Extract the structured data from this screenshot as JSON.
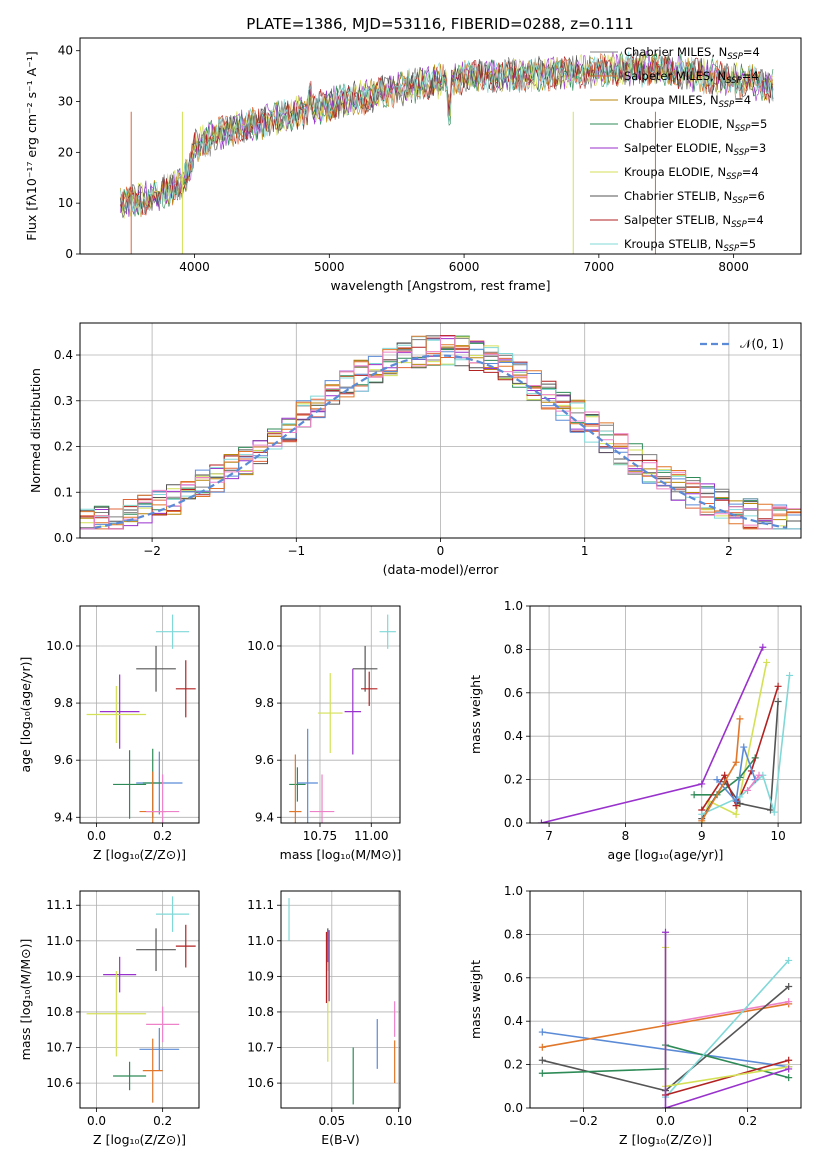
{
  "figure_title": "PLATE=1386, MJD=53116, FIBERID=0288, z=0.111",
  "colors": {
    "Chabrier MILES": "#7f7f7f",
    "Salpeter MILES": "#e0663a",
    "Kroupa MILES": "#b8860b",
    "Chabrier ELODIE": "#2e8b57",
    "Salpeter ELODIE": "#9932cc",
    "Kroupa ELODIE": "#d4e157",
    "Chabrier STELIB": "#555555",
    "Salpeter STELIB": "#b22222",
    "Kroupa STELIB": "#80d8d8",
    "blue": "#5b8bd6",
    "orange": "#e0772a",
    "pink": "#ee82c8",
    "normal": "#5b8bd6"
  },
  "chart_data": [
    {
      "id": "spectrum",
      "type": "line",
      "xlabel": "wavelength [Angstrom, rest frame]",
      "ylabel": "Flux [fλ10⁻¹⁷ erg cm⁻² s⁻¹ A⁻¹]",
      "xlim": [
        3150,
        8500
      ],
      "ylim": [
        0,
        42.5
      ],
      "xticks": [
        "4000",
        "5000",
        "6000",
        "7000",
        "8000"
      ],
      "xtick_values": [
        4000,
        5000,
        6000,
        7000,
        8000
      ],
      "yticks": [
        "0",
        "10",
        "20",
        "30",
        "40"
      ],
      "ytick_values": [
        0,
        10,
        20,
        30,
        40
      ],
      "continuum": [
        [
          3450,
          10
        ],
        [
          3700,
          11
        ],
        [
          3900,
          14
        ],
        [
          3960,
          16
        ],
        [
          4000,
          21
        ],
        [
          4200,
          24
        ],
        [
          4500,
          26
        ],
        [
          4800,
          28
        ],
        [
          5000,
          29.5
        ],
        [
          5300,
          31
        ],
        [
          5600,
          33
        ],
        [
          5900,
          34.5
        ],
        [
          6200,
          35
        ],
        [
          6600,
          35.5
        ],
        [
          7000,
          36
        ],
        [
          7400,
          36.5
        ],
        [
          7800,
          35
        ],
        [
          8100,
          34
        ],
        [
          8300,
          33
        ]
      ],
      "legend_position": "right",
      "series": [
        {
          "name": "Chabrier MILES, N",
          "sub": "SSP",
          "suffix": "=4",
          "color_key": "Chabrier MILES"
        },
        {
          "name": "Salpeter MILES, N",
          "sub": "SSP",
          "suffix": "=4",
          "color_key": "Salpeter MILES"
        },
        {
          "name": "Kroupa MILES, N",
          "sub": "SSP",
          "suffix": "=4",
          "color_key": "Kroupa MILES"
        },
        {
          "name": "Chabrier ELODIE, N",
          "sub": "SSP",
          "suffix": "=5",
          "color_key": "Chabrier ELODIE"
        },
        {
          "name": "Salpeter ELODIE, N",
          "sub": "SSP",
          "suffix": "=3",
          "color_key": "Salpeter ELODIE"
        },
        {
          "name": "Kroupa ELODIE, N",
          "sub": "SSP",
          "suffix": "=4",
          "color_key": "Kroupa ELODIE"
        },
        {
          "name": "Chabrier STELIB, N",
          "sub": "SSP",
          "suffix": "=6",
          "color_key": "Chabrier STELIB"
        },
        {
          "name": "Salpeter STELIB, N",
          "sub": "SSP",
          "suffix": "=4",
          "color_key": "Salpeter STELIB"
        },
        {
          "name": "Kroupa STELIB, N",
          "sub": "SSP",
          "suffix": "=5",
          "color_key": "Kroupa STELIB"
        }
      ]
    },
    {
      "id": "histogram",
      "type": "bar",
      "xlabel": "(data-model)/error",
      "ylabel": "Normed distribution",
      "xlim": [
        -2.5,
        2.5
      ],
      "ylim": [
        0,
        0.47
      ],
      "xticks": [
        "−2",
        "−1",
        "0",
        "1",
        "2"
      ],
      "xtick_values": [
        -2,
        -1,
        0,
        1,
        2
      ],
      "yticks": [
        "0.0",
        "0.1",
        "0.2",
        "0.3",
        "0.4"
      ],
      "ytick_values": [
        0,
        0.1,
        0.2,
        0.3,
        0.4
      ],
      "legend_label": "𝒩(0, 1)",
      "legend_position": "top-right",
      "bin_width": 0.1
    },
    {
      "id": "z-age",
      "type": "scatter",
      "xlabel": "Z [log₁₀(Z/Z⊙)]",
      "ylabel": "age  [log₁₀(age/yr)]",
      "xlim": [
        -0.05,
        0.31
      ],
      "ylim": [
        9.38,
        10.14
      ],
      "xticks": [
        "0.0",
        "0.2"
      ],
      "xtick_values": [
        0,
        0.2
      ],
      "yticks": [
        "9.4",
        "9.6",
        "9.8",
        "10.0"
      ],
      "ytick_values": [
        9.4,
        9.6,
        9.8,
        10.0
      ],
      "points": [
        {
          "x": 0.23,
          "y": 10.05,
          "xe": 0.05,
          "ye": 0.06,
          "color_key": "Kroupa STELIB"
        },
        {
          "x": 0.18,
          "y": 9.92,
          "xe": 0.06,
          "ye": 0.08,
          "color_key": "Chabrier STELIB"
        },
        {
          "x": 0.27,
          "y": 9.85,
          "xe": 0.03,
          "ye": 0.1,
          "color_key": "Salpeter STELIB"
        },
        {
          "x": 0.07,
          "y": 9.77,
          "xe": 0.06,
          "ye": 0.13,
          "color_key": "Salpeter ELODIE"
        },
        {
          "x": 0.06,
          "y": 9.76,
          "xe": 0.09,
          "ye": 0.1,
          "color_key": "Kroupa ELODIE"
        },
        {
          "x": 0.19,
          "y": 9.52,
          "xe": 0.07,
          "ye": 0.11,
          "color_key": "blue"
        },
        {
          "x": 0.17,
          "y": 9.52,
          "xe": 0.03,
          "ye": 0.12,
          "color_key": "Chabrier ELODIE"
        },
        {
          "x": 0.1,
          "y": 9.515,
          "xe": 0.05,
          "ye": 0.12,
          "color_key": "Chabrier ELODIE"
        },
        {
          "x": 0.17,
          "y": 9.42,
          "xe": 0.04,
          "ye": 0.14,
          "color_key": "orange"
        },
        {
          "x": 0.2,
          "y": 9.42,
          "xe": 0.05,
          "ye": 0.13,
          "color_key": "pink"
        }
      ]
    },
    {
      "id": "mass-age",
      "type": "scatter",
      "xlabel": "mass [log₁₀(M/M⊙)]",
      "ylabel": "",
      "xlim": [
        10.56,
        11.14
      ],
      "ylim": [
        9.38,
        10.14
      ],
      "xticks": [
        "10.75",
        "11.00"
      ],
      "xtick_values": [
        10.75,
        11.0
      ],
      "yticks": [
        "9.4",
        "9.6",
        "9.8",
        "10.0"
      ],
      "ytick_values": [
        9.4,
        9.6,
        9.8,
        10.0
      ],
      "points": [
        {
          "x": 11.08,
          "y": 10.05,
          "xe": 0.04,
          "ye": 0.06,
          "color_key": "Kroupa STELIB"
        },
        {
          "x": 10.97,
          "y": 9.92,
          "xe": 0.06,
          "ye": 0.08,
          "color_key": "Chabrier STELIB"
        },
        {
          "x": 10.99,
          "y": 9.85,
          "xe": 0.04,
          "ye": 0.06,
          "color_key": "Salpeter STELIB"
        },
        {
          "x": 10.91,
          "y": 9.77,
          "xe": 0.04,
          "ye": 0.15,
          "color_key": "Salpeter ELODIE"
        },
        {
          "x": 10.8,
          "y": 9.765,
          "xe": 0.06,
          "ye": 0.14,
          "color_key": "Kroupa ELODIE"
        },
        {
          "x": 10.69,
          "y": 9.52,
          "xe": 0.05,
          "ye": 0.19,
          "color_key": "blue"
        },
        {
          "x": 10.64,
          "y": 9.515,
          "xe": 0.04,
          "ye": 0.06,
          "color_key": "Chabrier ELODIE"
        },
        {
          "x": 10.63,
          "y": 9.42,
          "xe": 0.03,
          "ye": 0.2,
          "color_key": "orange"
        },
        {
          "x": 10.76,
          "y": 9.42,
          "xe": 0.06,
          "ye": 0.13,
          "color_key": "pink"
        }
      ]
    },
    {
      "id": "age-weight",
      "type": "line",
      "xlabel": "age  [log₁₀(age/yr)]",
      "ylabel": "mass weight",
      "xlim": [
        6.75,
        10.3
      ],
      "ylim": [
        0,
        1.0
      ],
      "xticks": [
        "7",
        "8",
        "9",
        "10"
      ],
      "xtick_values": [
        7,
        8,
        9,
        10
      ],
      "yticks": [
        "0.0",
        "0.2",
        "0.4",
        "0.6",
        "0.8",
        "1.0"
      ],
      "ytick_values": [
        0,
        0.2,
        0.4,
        0.6,
        0.8,
        1.0
      ],
      "series": [
        {
          "color_key": "Salpeter ELODIE",
          "points": [
            [
              6.9,
              0.0
            ],
            [
              9.0,
              0.18
            ],
            [
              9.8,
              0.81
            ]
          ]
        },
        {
          "color_key": "Kroupa ELODIE",
          "points": [
            [
              9.0,
              0.0
            ],
            [
              9.1,
              0.1
            ],
            [
              9.45,
              0.04
            ],
            [
              9.85,
              0.74
            ]
          ]
        },
        {
          "color_key": "Chabrier ELODIE",
          "points": [
            [
              8.9,
              0.13
            ],
            [
              9.2,
              0.13
            ],
            [
              9.5,
              0.21
            ],
            [
              9.7,
              0.3
            ]
          ]
        },
        {
          "color_key": "Chabrier STELIB",
          "points": [
            [
              9.0,
              0.02
            ],
            [
              9.3,
              0.19
            ],
            [
              9.5,
              0.09
            ],
            [
              9.9,
              0.06
            ],
            [
              10.0,
              0.56
            ]
          ]
        },
        {
          "color_key": "Salpeter STELIB",
          "points": [
            [
              9.0,
              0.06
            ],
            [
              9.3,
              0.22
            ],
            [
              9.45,
              0.08
            ],
            [
              9.65,
              0.24
            ],
            [
              10.0,
              0.63
            ]
          ]
        },
        {
          "color_key": "Kroupa STELIB",
          "points": [
            [
              9.0,
              0.04
            ],
            [
              9.5,
              0.12
            ],
            [
              9.8,
              0.22
            ],
            [
              9.95,
              0.05
            ],
            [
              10.15,
              0.68
            ]
          ]
        },
        {
          "color_key": "blue",
          "points": [
            [
              9.2,
              0.2
            ],
            [
              9.45,
              0.1
            ],
            [
              9.55,
              0.35
            ],
            [
              9.7,
              0.2
            ]
          ]
        },
        {
          "color_key": "orange",
          "points": [
            [
              9.0,
              0.01
            ],
            [
              9.45,
              0.28
            ],
            [
              9.5,
              0.48
            ]
          ]
        },
        {
          "color_key": "pink",
          "points": [
            [
              9.6,
              0.15
            ],
            [
              9.75,
              0.22
            ]
          ]
        }
      ]
    },
    {
      "id": "z-mass",
      "type": "scatter",
      "xlabel": "Z [log₁₀(Z/Z⊙)]",
      "ylabel": "mass [log₁₀(M/M⊙)]",
      "xlim": [
        -0.05,
        0.31
      ],
      "ylim": [
        10.53,
        11.14
      ],
      "xticks": [
        "0.0",
        "0.2"
      ],
      "xtick_values": [
        0,
        0.2
      ],
      "yticks": [
        "10.6",
        "10.7",
        "10.8",
        "10.9",
        "11.0",
        "11.1"
      ],
      "ytick_values": [
        10.6,
        10.7,
        10.8,
        10.9,
        11.0,
        11.1
      ],
      "points": [
        {
          "x": 0.23,
          "y": 11.075,
          "xe": 0.05,
          "ye": 0.05,
          "color_key": "Kroupa STELIB"
        },
        {
          "x": 0.18,
          "y": 10.975,
          "xe": 0.06,
          "ye": 0.06,
          "color_key": "Chabrier STELIB"
        },
        {
          "x": 0.27,
          "y": 10.985,
          "xe": 0.03,
          "ye": 0.06,
          "color_key": "Salpeter STELIB"
        },
        {
          "x": 0.07,
          "y": 10.905,
          "xe": 0.05,
          "ye": 0.05,
          "color_key": "Salpeter ELODIE"
        },
        {
          "x": 0.06,
          "y": 10.795,
          "xe": 0.09,
          "ye": 0.12,
          "color_key": "Kroupa ELODIE"
        },
        {
          "x": 0.2,
          "y": 10.765,
          "xe": 0.05,
          "ye": 0.05,
          "color_key": "pink"
        },
        {
          "x": 0.19,
          "y": 10.695,
          "xe": 0.06,
          "ye": 0.06,
          "color_key": "blue"
        },
        {
          "x": 0.17,
          "y": 10.635,
          "xe": 0.03,
          "ye": 0.09,
          "color_key": "orange"
        },
        {
          "x": 0.1,
          "y": 10.62,
          "xe": 0.05,
          "ye": 0.04,
          "color_key": "Chabrier ELODIE"
        }
      ]
    },
    {
      "id": "ebv-mass",
      "type": "scatter",
      "xlabel": "E(B-V)",
      "ylabel": "",
      "xlim": [
        0.012,
        0.101
      ],
      "ylim": [
        10.53,
        11.14
      ],
      "xticks": [
        "0.05",
        "0.10"
      ],
      "xtick_values": [
        0.05,
        0.1
      ],
      "yticks": [
        "10.6",
        "10.7",
        "10.8",
        "10.9",
        "11.0",
        "11.1"
      ],
      "ytick_values": [
        10.6,
        10.7,
        10.8,
        10.9,
        11.0,
        11.1
      ],
      "points": [
        {
          "x": 0.018,
          "y": 11.06,
          "xe": 0,
          "ye": 0.06,
          "color_key": "Kroupa STELIB"
        },
        {
          "x": 0.047,
          "y": 10.975,
          "xe": 0,
          "ye": 0.06,
          "color_key": "Chabrier STELIB"
        },
        {
          "x": 0.046,
          "y": 10.925,
          "xe": 0,
          "ye": 0.1,
          "color_key": "Salpeter STELIB"
        },
        {
          "x": 0.048,
          "y": 10.93,
          "xe": 0,
          "ye": 0.1,
          "color_key": "Salpeter ELODIE"
        },
        {
          "x": 0.047,
          "y": 10.8,
          "xe": 0,
          "ye": 0.14,
          "color_key": "Kroupa ELODIE"
        },
        {
          "x": 0.084,
          "y": 10.71,
          "xe": 0,
          "ye": 0.07,
          "color_key": "blue"
        },
        {
          "x": 0.066,
          "y": 10.62,
          "xe": 0,
          "ye": 0.08,
          "color_key": "Chabrier ELODIE"
        },
        {
          "x": 0.097,
          "y": 10.66,
          "xe": 0,
          "ye": 0.06,
          "color_key": "orange"
        },
        {
          "x": 0.097,
          "y": 10.78,
          "xe": 0,
          "ye": 0.05,
          "color_key": "pink"
        }
      ]
    },
    {
      "id": "z-weight",
      "type": "line",
      "xlabel": "Z [log₁₀(Z/Z⊙)]",
      "ylabel": "mass weight",
      "xlim": [
        -0.33,
        0.33
      ],
      "ylim": [
        0,
        1.0
      ],
      "xticks": [
        "−0.2",
        "0.0",
        "0.2"
      ],
      "xtick_values": [
        -0.2,
        0,
        0.2
      ],
      "yticks": [
        "0.0",
        "0.2",
        "0.4",
        "0.6",
        "0.8",
        "1.0"
      ],
      "ytick_values": [
        0,
        0.2,
        0.4,
        0.6,
        0.8,
        1.0
      ],
      "series": [
        {
          "color_key": "blue",
          "points": [
            [
              -0.3,
              0.35
            ],
            [
              0.3,
              0.19
            ]
          ]
        },
        {
          "color_key": "orange",
          "points": [
            [
              -0.3,
              0.28
            ],
            [
              0.0,
              0.38
            ],
            [
              0.3,
              0.48
            ]
          ]
        },
        {
          "color_key": "pink",
          "points": [
            [
              0.0,
              0.39
            ],
            [
              0.3,
              0.49
            ]
          ]
        },
        {
          "color_key": "Chabrier STELIB",
          "points": [
            [
              -0.3,
              0.22
            ],
            [
              0.0,
              0.08
            ],
            [
              0.3,
              0.56
            ]
          ]
        },
        {
          "color_key": "Chabrier ELODIE",
          "points": [
            [
              -0.3,
              0.16
            ],
            [
              0.0,
              0.18
            ],
            [
              0.0,
              0.29
            ],
            [
              0.3,
              0.14
            ]
          ]
        },
        {
          "color_key": "Kroupa STELIB",
          "points": [
            [
              0.0,
              0.05
            ],
            [
              0.3,
              0.68
            ]
          ]
        },
        {
          "color_key": "Salpeter STELIB",
          "points": [
            [
              0.0,
              0.06
            ],
            [
              0.3,
              0.22
            ]
          ]
        },
        {
          "color_key": "Kroupa ELODIE",
          "points": [
            [
              0.0,
              0.74
            ],
            [
              0.0,
              0.1
            ],
            [
              0.3,
              0.19
            ]
          ]
        },
        {
          "color_key": "Salpeter ELODIE",
          "points": [
            [
              0.0,
              0.81
            ],
            [
              0.0,
              0.0
            ],
            [
              0.3,
              0.18
            ]
          ]
        }
      ]
    }
  ]
}
